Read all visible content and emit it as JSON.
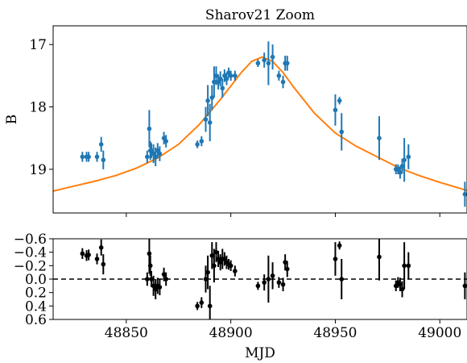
{
  "colors": {
    "data": "#1f77b4",
    "model": "#ff7f0e",
    "residual": "#000000"
  },
  "chart_data": [
    {
      "type": "scatter",
      "title": "Sharov21 Zoom",
      "xlabel": "",
      "ylabel": "B",
      "xlim": [
        48815,
        49013
      ],
      "ylim": [
        19.7,
        16.7
      ],
      "y_inverted": true,
      "yticks": [
        17,
        18,
        19
      ],
      "yticklabels": [
        "17",
        "18",
        "19"
      ],
      "grid": false,
      "series": [
        {
          "kind": "errorbar",
          "x": [
            48829,
            48831,
            48832,
            48836,
            48838,
            48839,
            48860,
            48861,
            48861.5,
            48862,
            48863,
            48864,
            48865,
            48866,
            48868,
            48869,
            48884,
            48886,
            48888,
            48889,
            48890,
            48891,
            48892,
            48893,
            48894,
            48895,
            48896,
            48897,
            48898,
            48899,
            48900,
            48902,
            48913,
            48916,
            48918,
            48920,
            48923,
            48925,
            48926,
            48927,
            48950,
            48952,
            48953,
            48971,
            48979,
            48980,
            48981,
            48982,
            48983,
            48985,
            49012
          ],
          "y": [
            18.8,
            18.8,
            18.8,
            18.8,
            18.6,
            18.85,
            18.8,
            18.35,
            18.7,
            18.7,
            18.75,
            18.8,
            18.7,
            18.75,
            18.5,
            18.55,
            18.6,
            18.55,
            18.2,
            17.9,
            18.25,
            17.85,
            17.6,
            17.5,
            17.6,
            17.55,
            17.7,
            17.5,
            17.55,
            17.45,
            17.5,
            17.5,
            17.3,
            17.25,
            17.3,
            17.2,
            17.5,
            17.6,
            17.3,
            17.3,
            18.05,
            17.9,
            18.4,
            18.5,
            19.0,
            19.0,
            19.05,
            18.95,
            18.85,
            18.8,
            19.4
          ],
          "yerr": [
            0.08,
            0.08,
            0.08,
            0.08,
            0.12,
            0.15,
            0.1,
            0.3,
            0.15,
            0.12,
            0.15,
            0.15,
            0.12,
            0.12,
            0.1,
            0.1,
            0.06,
            0.08,
            0.2,
            0.25,
            0.3,
            0.2,
            0.25,
            0.15,
            0.12,
            0.12,
            0.15,
            0.1,
            0.1,
            0.08,
            0.08,
            0.08,
            0.06,
            0.12,
            0.35,
            0.2,
            0.08,
            0.1,
            0.12,
            0.12,
            0.25,
            0.06,
            0.3,
            0.35,
            0.08,
            0.08,
            0.1,
            0.12,
            0.35,
            0.2,
            0.2
          ]
        },
        {
          "kind": "line",
          "x": [
            48815,
            48825,
            48835,
            48845,
            48855,
            48865,
            48875,
            48885,
            48895,
            48905,
            48910,
            48915,
            48920,
            48925,
            48930,
            48940,
            48950,
            48960,
            48970,
            48980,
            48990,
            49000,
            49013
          ],
          "y": [
            19.35,
            19.27,
            19.19,
            19.1,
            18.98,
            18.82,
            18.6,
            18.28,
            17.88,
            17.45,
            17.27,
            17.2,
            17.27,
            17.45,
            17.68,
            18.1,
            18.42,
            18.63,
            18.8,
            18.97,
            19.1,
            19.21,
            19.34
          ]
        }
      ]
    },
    {
      "type": "scatter",
      "title": "",
      "xlabel": "MJD",
      "ylabel": "",
      "xlim": [
        48815,
        49013
      ],
      "ylim": [
        0.6,
        -0.6
      ],
      "y_inverted": true,
      "xticks": [
        48850,
        48900,
        48950,
        49000
      ],
      "xticklabels": [
        "48850",
        "48900",
        "48950",
        "49000"
      ],
      "yticks": [
        -0.6,
        -0.4,
        -0.2,
        0.0,
        0.2,
        0.4,
        0.6
      ],
      "yticklabels": [
        "−0.6",
        "−0.4",
        "−0.2",
        "0.0",
        "0.2",
        "0.4",
        "0.6"
      ],
      "reference_line": 0.0,
      "grid": false,
      "series": [
        {
          "kind": "errorbar",
          "x": [
            48829,
            48831,
            48832,
            48836,
            48838,
            48839,
            48860,
            48861,
            48861.5,
            48862,
            48863,
            48864,
            48865,
            48866,
            48868,
            48869,
            48884,
            48886,
            48888,
            48889,
            48890,
            48891,
            48892,
            48893,
            48894,
            48895,
            48896,
            48897,
            48898,
            48899,
            48900,
            48902,
            48913,
            48916,
            48918,
            48920,
            48923,
            48925,
            48926,
            48927,
            48950,
            48952,
            48953,
            48971,
            48979,
            48980,
            48981,
            48982,
            48983,
            48985,
            49012
          ],
          "y": [
            -0.38,
            -0.35,
            -0.36,
            -0.3,
            -0.47,
            -0.22,
            0.0,
            -0.38,
            -0.2,
            0.0,
            0.1,
            0.15,
            0.1,
            0.12,
            -0.07,
            0.0,
            0.4,
            0.35,
            0.0,
            -0.1,
            0.4,
            -0.35,
            -0.2,
            -0.4,
            -0.3,
            -0.25,
            -0.3,
            -0.3,
            -0.25,
            -0.22,
            -0.2,
            -0.12,
            0.1,
            0.05,
            0.0,
            -0.05,
            0.05,
            0.08,
            -0.25,
            -0.15,
            -0.3,
            -0.5,
            0.0,
            -0.33,
            0.1,
            0.05,
            0.08,
            0.15,
            -0.2,
            -0.2,
            0.1
          ],
          "yerr": [
            0.08,
            0.08,
            0.08,
            0.08,
            0.12,
            0.15,
            0.1,
            0.3,
            0.15,
            0.12,
            0.15,
            0.15,
            0.12,
            0.12,
            0.1,
            0.1,
            0.06,
            0.08,
            0.2,
            0.25,
            0.3,
            0.2,
            0.25,
            0.15,
            0.12,
            0.12,
            0.15,
            0.1,
            0.1,
            0.08,
            0.08,
            0.08,
            0.06,
            0.12,
            0.35,
            0.2,
            0.08,
            0.1,
            0.12,
            0.12,
            0.25,
            0.06,
            0.3,
            0.35,
            0.08,
            0.08,
            0.1,
            0.12,
            0.35,
            0.2,
            0.2
          ]
        }
      ]
    }
  ]
}
